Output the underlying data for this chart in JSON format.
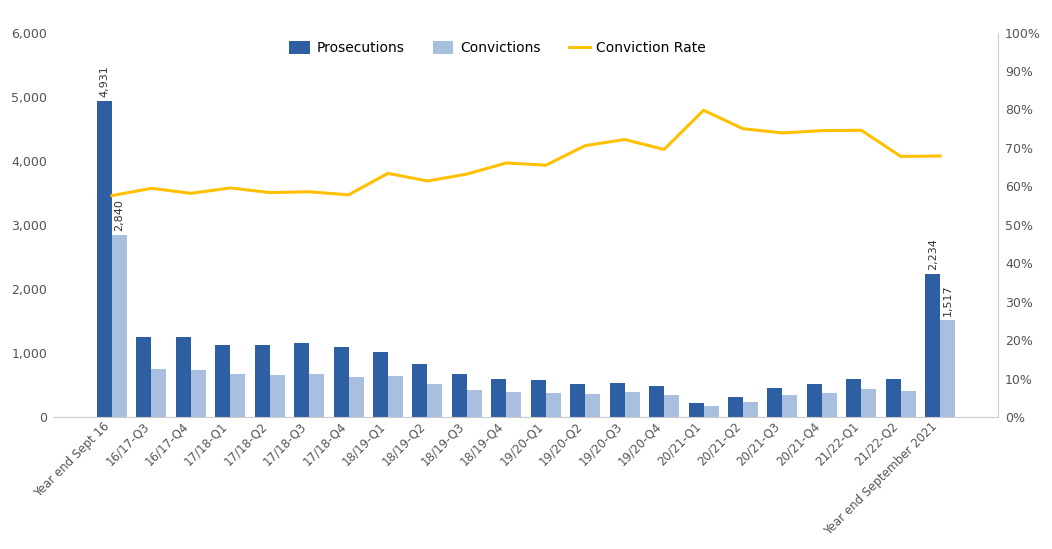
{
  "categories": [
    "Year end Sept 16",
    "16/17-Q3",
    "16/17-Q4",
    "17/18-Q1",
    "17/18-Q2",
    "17/18-Q3",
    "17/18-Q4",
    "18/19-Q1",
    "18/19-Q2",
    "18/19-Q3",
    "18/19-Q4",
    "19/20-Q1",
    "19/20-Q2",
    "19/20-Q3",
    "19/20-Q4",
    "20/21-Q1",
    "20/21-Q2",
    "20/21-Q3",
    "20/21-Q4",
    "21/22-Q1",
    "21/22-Q2",
    "Year end September 2021"
  ],
  "prosecutions": [
    4931,
    1255,
    1255,
    1120,
    1130,
    1160,
    1090,
    1010,
    830,
    680,
    590,
    580,
    510,
    540,
    490,
    218,
    320,
    460,
    510,
    590,
    600,
    2234
  ],
  "convictions": [
    2840,
    747,
    730,
    668,
    660,
    680,
    630,
    640,
    510,
    430,
    390,
    380,
    360,
    390,
    341,
    174,
    240,
    340,
    380,
    440,
    407,
    1517
  ],
  "conviction_rate": [
    0.576,
    0.595,
    0.582,
    0.596,
    0.584,
    0.586,
    0.578,
    0.634,
    0.614,
    0.632,
    0.661,
    0.655,
    0.706,
    0.722,
    0.696,
    0.798,
    0.75,
    0.739,
    0.745,
    0.746,
    0.678,
    0.679
  ],
  "bar_prosecution_color": "#2E5FA3",
  "bar_conviction_color": "#A8BFDF",
  "line_color": "#FFC000",
  "ylim_left": [
    0,
    6000
  ],
  "ylim_right": [
    0,
    1.0
  ],
  "yticks_left": [
    0,
    1000,
    2000,
    3000,
    4000,
    5000,
    6000
  ],
  "yticks_right": [
    0.0,
    0.1,
    0.2,
    0.3,
    0.4,
    0.5,
    0.6,
    0.7,
    0.8,
    0.9,
    1.0
  ],
  "annotation_first_prosecution": "4,931",
  "annotation_first_conviction": "2,840",
  "annotation_last_prosecution": "2,234",
  "annotation_last_conviction": "1,517",
  "legend_prosecutions": "Prosecutions",
  "legend_convictions": "Convictions",
  "legend_conviction_rate": "Conviction Rate",
  "background_color": "#FFFFFF",
  "line_width": 2.2,
  "line_marker": "o",
  "line_marker_size": 0
}
